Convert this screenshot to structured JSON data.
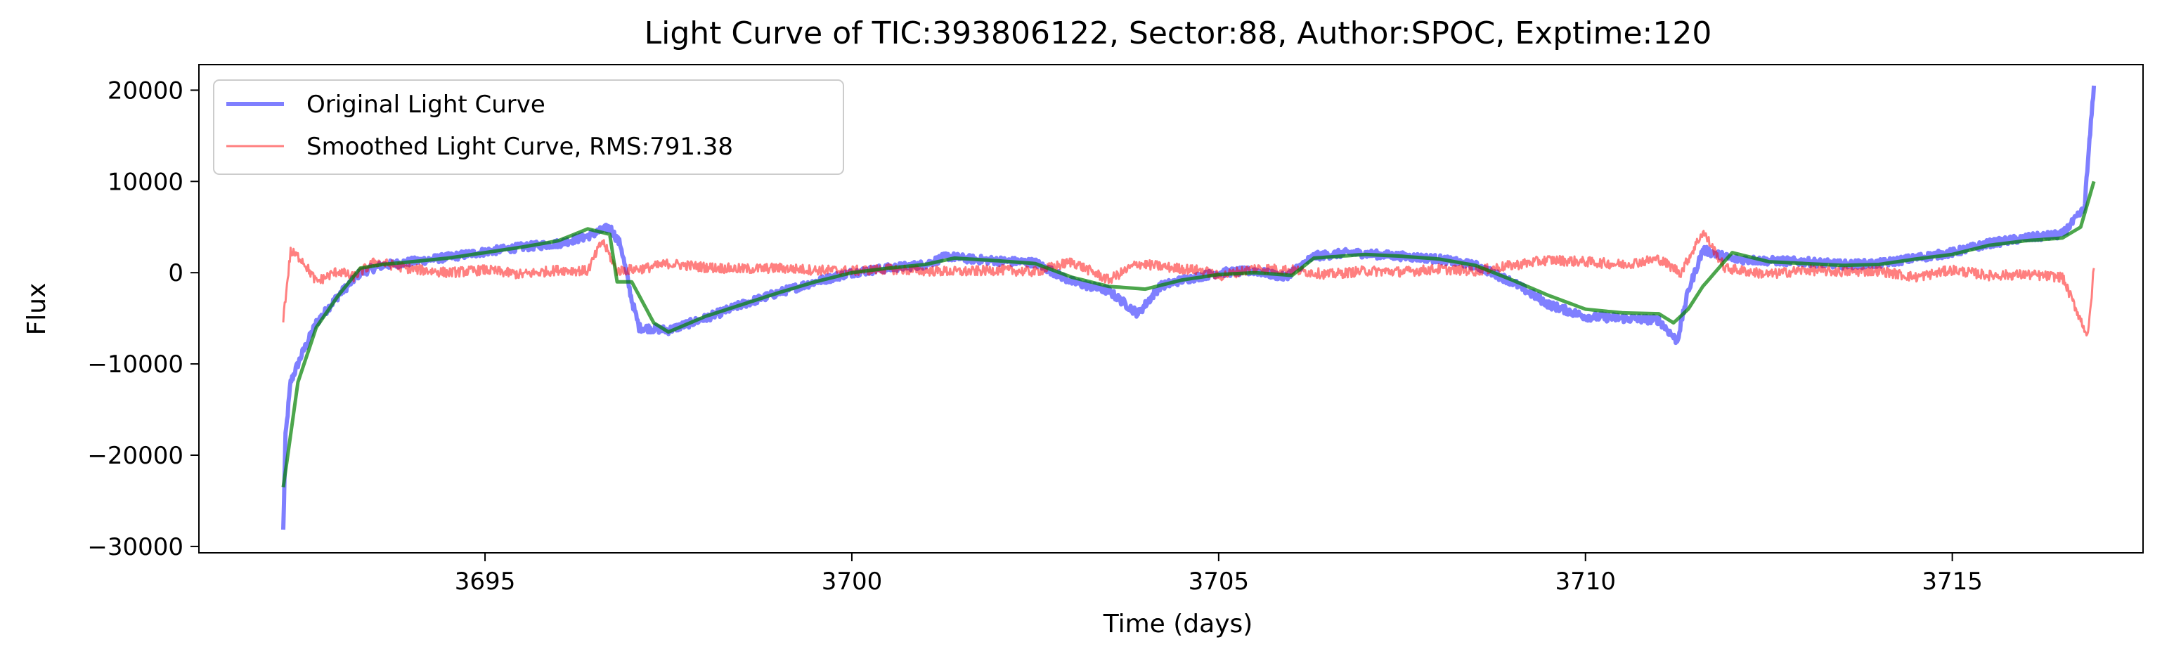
{
  "chart_data": {
    "type": "line",
    "title": "Light Curve of TIC:393806122, Sector:88, Author:SPOC, Exptime:120",
    "xlabel": "Time (days)",
    "ylabel": "Flux",
    "xlim": [
      3691.1,
      3717.6
    ],
    "ylim": [
      -30700,
      22800
    ],
    "xticks": [
      3695,
      3700,
      3705,
      3710,
      3715
    ],
    "yticks": [
      -30000,
      -20000,
      -10000,
      0,
      10000,
      20000
    ],
    "grid": false,
    "legend_position": "upper-left",
    "series": [
      {
        "name": "Original Light Curve",
        "color": "#0000ff",
        "opacity": 0.5,
        "points": [
          [
            3692.25,
            -28300
          ],
          [
            3692.28,
            -18000
          ],
          [
            3692.35,
            -12000
          ],
          [
            3692.5,
            -9000
          ],
          [
            3692.7,
            -5500
          ],
          [
            3693.0,
            -2500
          ],
          [
            3693.3,
            0
          ],
          [
            3693.6,
            800
          ],
          [
            3694.0,
            1200
          ],
          [
            3694.5,
            1700
          ],
          [
            3695.0,
            2300
          ],
          [
            3695.5,
            2800
          ],
          [
            3696.0,
            3200
          ],
          [
            3696.4,
            4000
          ],
          [
            3696.7,
            5000
          ],
          [
            3696.85,
            3000
          ],
          [
            3697.0,
            -3000
          ],
          [
            3697.1,
            -6000
          ],
          [
            3697.5,
            -6300
          ],
          [
            3698.0,
            -5000
          ],
          [
            3698.5,
            -3500
          ],
          [
            3699.0,
            -2200
          ],
          [
            3699.5,
            -1000
          ],
          [
            3700.0,
            0
          ],
          [
            3700.5,
            500
          ],
          [
            3701.0,
            900
          ],
          [
            3701.3,
            1800
          ],
          [
            3701.6,
            1500
          ],
          [
            3702.0,
            1300
          ],
          [
            3702.5,
            1100
          ],
          [
            3703.0,
            -1000
          ],
          [
            3703.5,
            -2000
          ],
          [
            3703.9,
            -4500
          ],
          [
            3704.2,
            -1500
          ],
          [
            3704.5,
            -800
          ],
          [
            3705.0,
            0
          ],
          [
            3705.5,
            200
          ],
          [
            3705.9,
            -500
          ],
          [
            3706.3,
            1800
          ],
          [
            3706.8,
            2200
          ],
          [
            3707.5,
            1800
          ],
          [
            3708.0,
            1500
          ],
          [
            3708.5,
            800
          ],
          [
            3709.0,
            -1000
          ],
          [
            3709.5,
            -3500
          ],
          [
            3710.0,
            -4800
          ],
          [
            3710.5,
            -5000
          ],
          [
            3711.0,
            -5200
          ],
          [
            3711.25,
            -7500
          ],
          [
            3711.4,
            -2000
          ],
          [
            3711.6,
            2500
          ],
          [
            3712.0,
            1500
          ],
          [
            3712.5,
            1300
          ],
          [
            3713.0,
            1200
          ],
          [
            3713.5,
            900
          ],
          [
            3714.0,
            1000
          ],
          [
            3714.5,
            1600
          ],
          [
            3715.0,
            2200
          ],
          [
            3715.5,
            3200
          ],
          [
            3716.0,
            3800
          ],
          [
            3716.5,
            4200
          ],
          [
            3716.8,
            7000
          ],
          [
            3716.93,
            20500
          ]
        ]
      },
      {
        "name": "Smoothed Light Curve, RMS:791.38",
        "color": "#ff0000",
        "opacity": 0.5,
        "points": [
          [
            3692.25,
            -5000
          ],
          [
            3692.35,
            2300
          ],
          [
            3692.5,
            1500
          ],
          [
            3692.7,
            -1000
          ],
          [
            3693.0,
            200
          ],
          [
            3693.2,
            -500
          ],
          [
            3693.5,
            1200
          ],
          [
            3694.0,
            400
          ],
          [
            3694.5,
            0
          ],
          [
            3695.0,
            300
          ],
          [
            3695.5,
            -200
          ],
          [
            3696.0,
            300
          ],
          [
            3696.4,
            200
          ],
          [
            3696.6,
            3500
          ],
          [
            3696.8,
            200
          ],
          [
            3697.2,
            500
          ],
          [
            3697.5,
            1000
          ],
          [
            3698.0,
            600
          ],
          [
            3698.5,
            400
          ],
          [
            3699.0,
            500
          ],
          [
            3699.5,
            300
          ],
          [
            3700.0,
            200
          ],
          [
            3700.5,
            400
          ],
          [
            3701.0,
            200
          ],
          [
            3701.5,
            100
          ],
          [
            3702.0,
            300
          ],
          [
            3702.5,
            100
          ],
          [
            3703.0,
            1200
          ],
          [
            3703.5,
            -800
          ],
          [
            3703.9,
            1000
          ],
          [
            3704.3,
            600
          ],
          [
            3704.8,
            200
          ],
          [
            3705.0,
            -400
          ],
          [
            3705.5,
            500
          ],
          [
            3706.0,
            300
          ],
          [
            3706.5,
            -200
          ],
          [
            3707.0,
            200
          ],
          [
            3707.5,
            100
          ],
          [
            3708.0,
            400
          ],
          [
            3708.5,
            200
          ],
          [
            3709.0,
            800
          ],
          [
            3709.5,
            1400
          ],
          [
            3710.0,
            1200
          ],
          [
            3710.5,
            900
          ],
          [
            3711.0,
            1500
          ],
          [
            3711.3,
            0
          ],
          [
            3711.6,
            4500
          ],
          [
            3711.9,
            500
          ],
          [
            3712.5,
            -200
          ],
          [
            3713.0,
            300
          ],
          [
            3713.5,
            100
          ],
          [
            3714.0,
            200
          ],
          [
            3714.5,
            -500
          ],
          [
            3715.0,
            300
          ],
          [
            3715.5,
            -300
          ],
          [
            3716.0,
            -200
          ],
          [
            3716.5,
            -500
          ],
          [
            3716.85,
            -7000
          ],
          [
            3716.93,
            500
          ]
        ]
      },
      {
        "color": "#008000",
        "opacity": 0.7,
        "points": [
          [
            3692.25,
            -23500
          ],
          [
            3692.45,
            -12000
          ],
          [
            3692.7,
            -6000
          ],
          [
            3693.0,
            -2500
          ],
          [
            3693.3,
            500
          ],
          [
            3693.6,
            900
          ],
          [
            3694.0,
            1200
          ],
          [
            3694.5,
            1600
          ],
          [
            3695.0,
            2200
          ],
          [
            3695.5,
            2800
          ],
          [
            3696.0,
            3500
          ],
          [
            3696.4,
            4800
          ],
          [
            3696.7,
            4200
          ],
          [
            3696.8,
            -1000
          ],
          [
            3697.0,
            -1000
          ],
          [
            3697.3,
            -5500
          ],
          [
            3697.5,
            -6500
          ],
          [
            3698.0,
            -4800
          ],
          [
            3698.5,
            -3500
          ],
          [
            3699.0,
            -2200
          ],
          [
            3699.5,
            -1000
          ],
          [
            3700.0,
            0
          ],
          [
            3700.5,
            500
          ],
          [
            3701.0,
            900
          ],
          [
            3701.4,
            1600
          ],
          [
            3702.0,
            1300
          ],
          [
            3702.5,
            1000
          ],
          [
            3703.0,
            -500
          ],
          [
            3703.5,
            -1500
          ],
          [
            3704.0,
            -1800
          ],
          [
            3704.5,
            -800
          ],
          [
            3705.0,
            -200
          ],
          [
            3705.5,
            0
          ],
          [
            3706.0,
            -300
          ],
          [
            3706.3,
            1600
          ],
          [
            3707.0,
            2000
          ],
          [
            3707.5,
            1800
          ],
          [
            3708.0,
            1500
          ],
          [
            3708.5,
            800
          ],
          [
            3709.0,
            -800
          ],
          [
            3709.5,
            -2500
          ],
          [
            3710.0,
            -4000
          ],
          [
            3710.5,
            -4400
          ],
          [
            3711.0,
            -4500
          ],
          [
            3711.2,
            -5500
          ],
          [
            3711.4,
            -4000
          ],
          [
            3711.6,
            -1500
          ],
          [
            3712.0,
            2200
          ],
          [
            3712.5,
            1200
          ],
          [
            3713.0,
            1000
          ],
          [
            3713.5,
            800
          ],
          [
            3714.0,
            900
          ],
          [
            3714.5,
            1500
          ],
          [
            3715.0,
            2000
          ],
          [
            3715.5,
            3000
          ],
          [
            3716.0,
            3500
          ],
          [
            3716.5,
            3800
          ],
          [
            3716.75,
            5000
          ],
          [
            3716.93,
            10000
          ]
        ]
      }
    ]
  }
}
